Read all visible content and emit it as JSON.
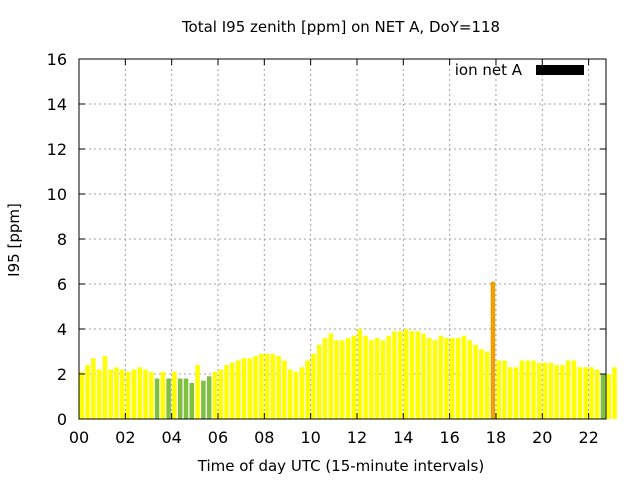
{
  "chart_data": {
    "type": "bar",
    "title": "Total I95 zenith [ppm] on NET A, DoY=118",
    "xlabel": "Time of day UTC (15-minute intervals)",
    "ylabel": "I95 [ppm]",
    "xlim": [
      0,
      22.75
    ],
    "ylim": [
      0,
      16
    ],
    "x_ticks": [
      "00",
      "02",
      "04",
      "06",
      "08",
      "10",
      "12",
      "14",
      "16",
      "18",
      "20",
      "22"
    ],
    "y_ticks": [
      "0",
      "2",
      "4",
      "6",
      "8",
      "10",
      "12",
      "14",
      "16"
    ],
    "grid": true,
    "legend": {
      "position": "top-right",
      "label": "ion net A",
      "color": "#000000"
    },
    "bar_interval_hours": 0.25,
    "colors": {
      "low": "#ffff00",
      "green": "#80c040",
      "orange": "#f0a000",
      "grid": "#a0a0a0"
    },
    "values": [
      2.1,
      2.4,
      2.7,
      2.2,
      2.8,
      2.2,
      2.3,
      2.2,
      2.1,
      2.2,
      2.3,
      2.2,
      2.1,
      1.8,
      2.1,
      1.8,
      2.1,
      1.8,
      1.8,
      1.6,
      2.4,
      1.7,
      1.9,
      2.1,
      2.2,
      2.4,
      2.5,
      2.6,
      2.7,
      2.7,
      2.8,
      2.9,
      2.9,
      2.9,
      2.8,
      2.6,
      2.2,
      2.1,
      2.3,
      2.6,
      2.9,
      3.3,
      3.6,
      3.8,
      3.5,
      3.5,
      3.6,
      3.7,
      4.0,
      3.7,
      3.5,
      3.6,
      3.5,
      3.7,
      3.9,
      3.9,
      4.0,
      3.9,
      3.9,
      3.8,
      3.6,
      3.5,
      3.7,
      3.6,
      3.6,
      3.6,
      3.7,
      3.5,
      3.3,
      3.1,
      3.0,
      6.1,
      2.6,
      2.6,
      2.3,
      2.3,
      2.6,
      2.6,
      2.6,
      2.5,
      2.5,
      2.5,
      2.4,
      2.4,
      2.6,
      2.6,
      2.3,
      2.3,
      2.3,
      2.2,
      2.0,
      2.0,
      2.3
    ],
    "bar_colors": [
      "low",
      "low",
      "low",
      "low",
      "low",
      "low",
      "low",
      "low",
      "low",
      "low",
      "low",
      "low",
      "low",
      "green",
      "low",
      "green",
      "low",
      "green",
      "green",
      "green",
      "low",
      "green",
      "green",
      "low",
      "low",
      "low",
      "low",
      "low",
      "low",
      "low",
      "low",
      "low",
      "low",
      "low",
      "low",
      "low",
      "low",
      "low",
      "low",
      "low",
      "low",
      "low",
      "low",
      "low",
      "low",
      "low",
      "low",
      "low",
      "low",
      "low",
      "low",
      "low",
      "low",
      "low",
      "low",
      "low",
      "low",
      "low",
      "low",
      "low",
      "low",
      "low",
      "low",
      "low",
      "low",
      "low",
      "low",
      "low",
      "low",
      "low",
      "low",
      "orange",
      "low",
      "low",
      "low",
      "low",
      "low",
      "low",
      "low",
      "low",
      "low",
      "low",
      "low",
      "low",
      "low",
      "low",
      "low",
      "low",
      "low",
      "low",
      "green",
      "low",
      "low"
    ]
  }
}
